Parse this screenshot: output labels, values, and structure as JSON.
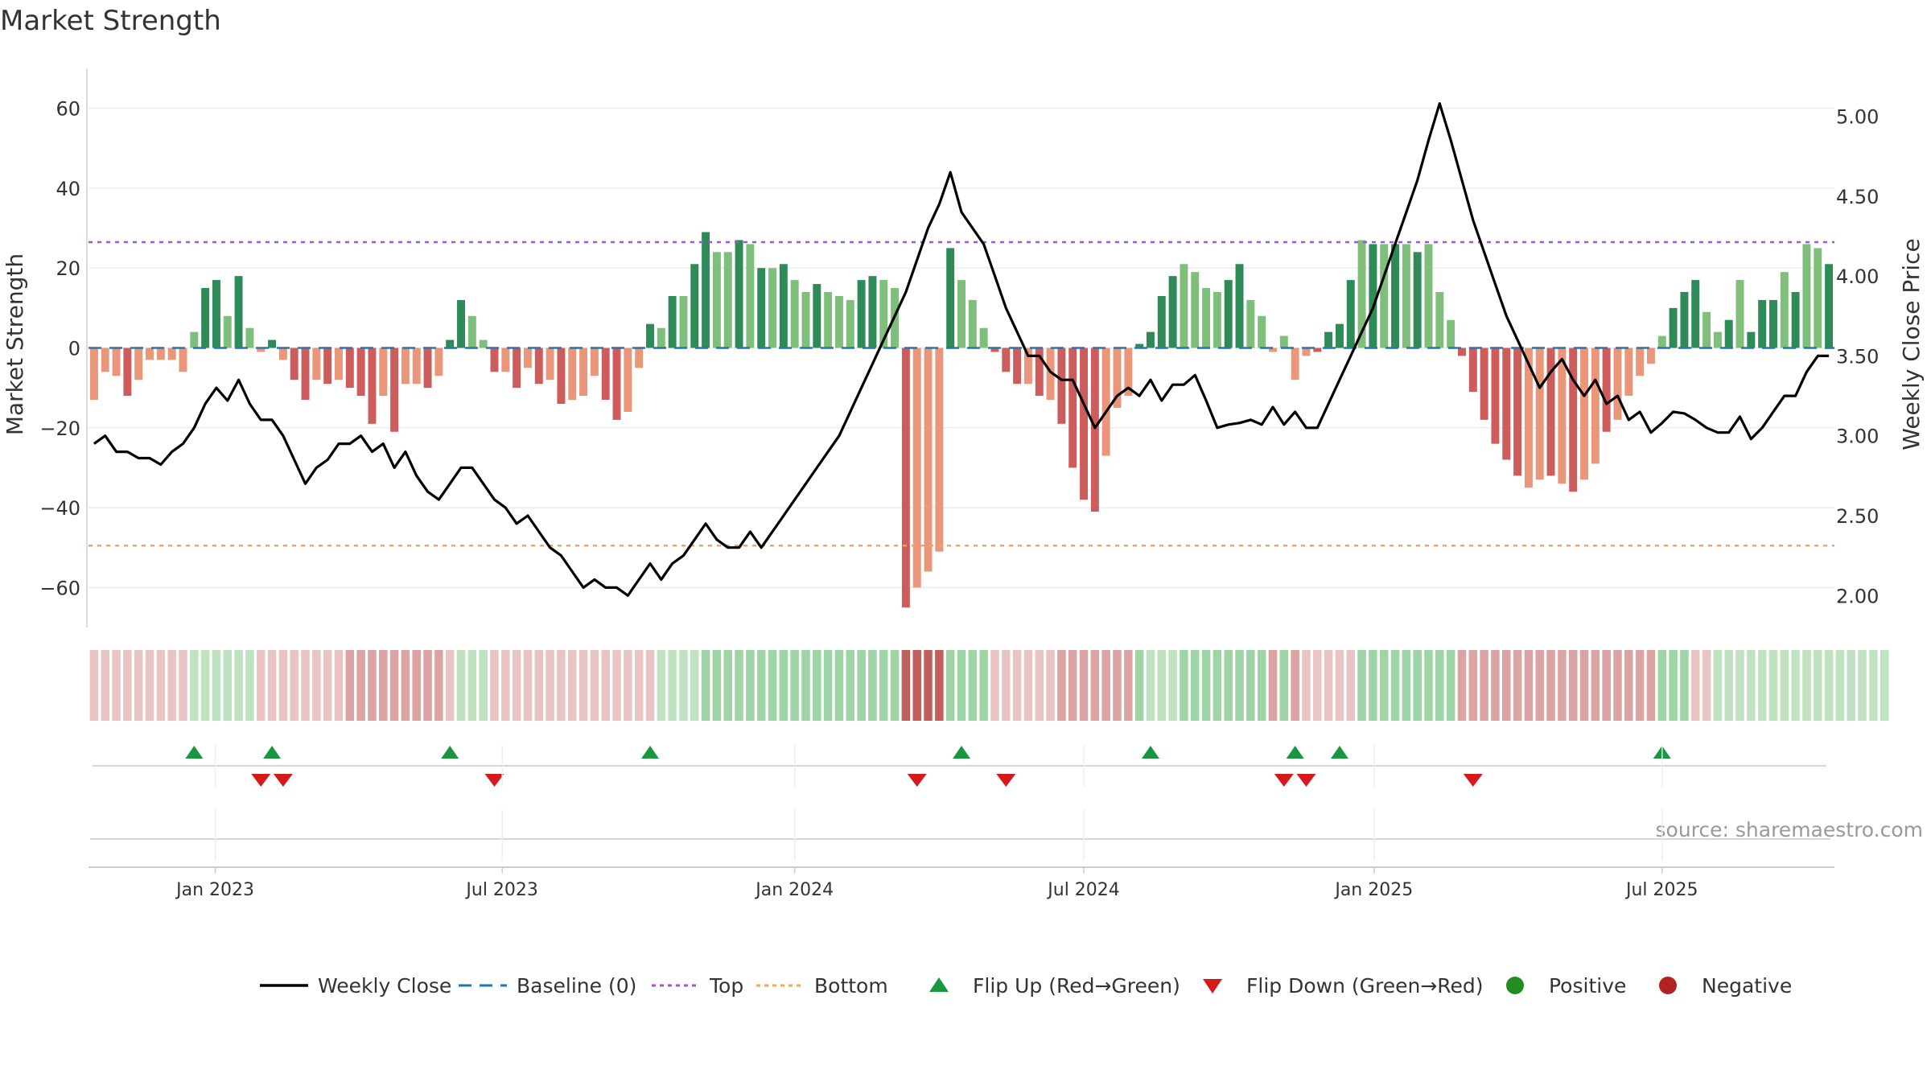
{
  "chart_data": {
    "type": "bar",
    "title": "Market Strength",
    "ylabel": "Market Strength",
    "y2label": "Weekly Close Price",
    "ylim": [
      -70,
      70
    ],
    "y2lim": [
      1.8,
      5.3
    ],
    "yticks": [
      60,
      40,
      20,
      0,
      -20,
      -40,
      -60
    ],
    "ytick_labels": [
      "60",
      "40",
      "20",
      "0",
      "−20",
      "−40",
      "−60"
    ],
    "y2ticks": [
      5.0,
      4.5,
      4.0,
      3.5,
      3.0,
      2.5,
      2.0
    ],
    "y2tick_labels": [
      "5.00",
      "4.50",
      "4.00",
      "3.50",
      "3.00",
      "2.50",
      "2.00"
    ],
    "top_level": 26.5,
    "bottom_level": -49.5,
    "x_start": "2022-10-17",
    "x_step_weeks": 1,
    "xticks": [
      {
        "label": "Jan 2023",
        "week": 10.9
      },
      {
        "label": "Jul 2023",
        "week": 36.7
      },
      {
        "label": "Jan 2024",
        "week": 63.0
      },
      {
        "label": "Jul 2024",
        "week": 89.0
      },
      {
        "label": "Jan 2025",
        "week": 115.1
      },
      {
        "label": "Jul 2025",
        "week": 141.0
      }
    ],
    "strength": [
      -13,
      -6,
      -7,
      -12,
      -8,
      -3,
      -3,
      -3,
      -6,
      4,
      15,
      17,
      8,
      18,
      5,
      -1,
      2,
      -3,
      -8,
      -13,
      -8,
      -9,
      -8,
      -10,
      -12,
      -19,
      -12,
      -21,
      -9,
      -9,
      -10,
      -7,
      2,
      12,
      8,
      2,
      -6,
      -6,
      -10,
      -5,
      -9,
      -8,
      -14,
      -13,
      -12,
      -7,
      -13,
      -18,
      -16,
      -5,
      6,
      5,
      13,
      13,
      21,
      29,
      24,
      24,
      27,
      26,
      20,
      20,
      21,
      17,
      14,
      16,
      14,
      13,
      12,
      17,
      18,
      17,
      15,
      -65,
      -60,
      -56,
      -51,
      25,
      17,
      12,
      5,
      -1,
      -6,
      -9,
      -9,
      -12,
      -13,
      -19,
      -30,
      -38,
      -41,
      -27,
      -15,
      -12,
      1,
      4,
      13,
      18,
      21,
      19,
      15,
      14,
      17,
      21,
      12,
      8,
      -1,
      3,
      -8,
      -2,
      -1,
      4,
      6,
      17,
      27,
      26,
      26,
      26,
      26,
      24,
      26,
      14,
      7,
      -2,
      -11,
      -18,
      -24,
      -28,
      -32,
      -35,
      -33,
      -32,
      -34,
      -36,
      -33,
      -29,
      -21,
      -18,
      -12,
      -7,
      -4,
      3,
      10,
      14,
      17,
      9,
      4,
      7,
      17,
      4,
      12,
      12,
      19,
      14,
      26,
      25,
      21
    ],
    "shades": [
      "light",
      "light",
      "light",
      "dark",
      "light",
      "light",
      "light",
      "light",
      "light",
      "light",
      "dark",
      "dark",
      "light",
      "dark",
      "light",
      "light",
      "dark",
      "light",
      "dark",
      "dark",
      "light",
      "dark",
      "light",
      "dark",
      "dark",
      "dark",
      "light",
      "dark",
      "light",
      "light",
      "dark",
      "light",
      "dark",
      "dark",
      "light",
      "light",
      "dark",
      "light",
      "dark",
      "light",
      "dark",
      "light",
      "dark",
      "light",
      "light",
      "light",
      "dark",
      "dark",
      "light",
      "light",
      "dark",
      "light",
      "dark",
      "light",
      "dark",
      "dark",
      "light",
      "light",
      "dark",
      "light",
      "dark",
      "light",
      "dark",
      "light",
      "light",
      "dark",
      "light",
      "light",
      "light",
      "dark",
      "dark",
      "light",
      "light",
      "dark",
      "light",
      "light",
      "light",
      "dark",
      "light",
      "light",
      "light",
      "dark",
      "dark",
      "dark",
      "light",
      "dark",
      "light",
      "dark",
      "dark",
      "dark",
      "dark",
      "light",
      "light",
      "light",
      "dark",
      "dark",
      "dark",
      "dark",
      "light",
      "light",
      "light",
      "light",
      "dark",
      "dark",
      "light",
      "light",
      "light",
      "light",
      "light",
      "light",
      "dark",
      "dark",
      "dark",
      "dark",
      "light",
      "dark",
      "light",
      "dark",
      "light",
      "dark",
      "light",
      "light",
      "light",
      "dark",
      "dark",
      "dark",
      "dark",
      "dark",
      "dark",
      "light",
      "light",
      "dark",
      "light",
      "dark",
      "light",
      "light",
      "dark",
      "light",
      "light",
      "light",
      "light",
      "light",
      "dark",
      "dark",
      "dark",
      "light",
      "light",
      "dark",
      "light",
      "dark",
      "dark",
      "dark",
      "light",
      "dark",
      "light",
      "light",
      "dark",
      "light",
      "light",
      "dark",
      "light",
      "light"
    ],
    "close": [
      2.95,
      3.0,
      2.9,
      2.9,
      2.86,
      2.86,
      2.82,
      2.9,
      2.95,
      3.05,
      3.2,
      3.3,
      3.22,
      3.35,
      3.2,
      3.1,
      3.1,
      3.0,
      2.85,
      2.7,
      2.8,
      2.85,
      2.95,
      2.95,
      3.0,
      2.9,
      2.95,
      2.8,
      2.9,
      2.75,
      2.65,
      2.6,
      2.7,
      2.8,
      2.8,
      2.7,
      2.6,
      2.55,
      2.45,
      2.5,
      2.4,
      2.3,
      2.25,
      2.15,
      2.05,
      2.1,
      2.05,
      2.05,
      2.0,
      2.1,
      2.2,
      2.1,
      2.2,
      2.25,
      2.35,
      2.45,
      2.35,
      2.3,
      2.3,
      2.4,
      2.3,
      2.4,
      2.5,
      2.6,
      2.7,
      2.8,
      2.9,
      3.0,
      3.15,
      3.3,
      3.45,
      3.6,
      3.75,
      3.9,
      4.1,
      4.3,
      4.45,
      4.65,
      4.4,
      4.3,
      4.2,
      4.0,
      3.8,
      3.65,
      3.5,
      3.5,
      3.4,
      3.35,
      3.35,
      3.2,
      3.05,
      3.15,
      3.25,
      3.3,
      3.25,
      3.35,
      3.22,
      3.32,
      3.32,
      3.38,
      3.22,
      3.05,
      3.07,
      3.08,
      3.1,
      3.07,
      3.18,
      3.07,
      3.15,
      3.05,
      3.05,
      3.2,
      3.35,
      3.5,
      3.65,
      3.8,
      4.0,
      4.2,
      4.4,
      4.6,
      4.85,
      5.08,
      4.85,
      4.6,
      4.35,
      4.15,
      3.95,
      3.75,
      3.6,
      3.45,
      3.3,
      3.4,
      3.48,
      3.35,
      3.25,
      3.35,
      3.2,
      3.25,
      3.1,
      3.15,
      3.02,
      3.08,
      3.15,
      3.14,
      3.1,
      3.05,
      3.02,
      3.02,
      3.12,
      2.98,
      3.05,
      3.15,
      3.25,
      3.25,
      3.4,
      3.5,
      3.5
    ],
    "regime_strip": [
      "faint",
      "faint",
      "faint",
      "faint",
      "faint",
      "faint",
      "faint",
      "faint",
      "faint",
      "light",
      "light",
      "light",
      "light",
      "light",
      "light",
      "faint",
      "faint",
      "faint",
      "faint",
      "faint",
      "faint",
      "faint",
      "faint",
      "medium",
      "medium",
      "medium",
      "medium",
      "medium",
      "medium",
      "medium",
      "medium",
      "medium",
      "faint",
      "light",
      "light",
      "light",
      "faint",
      "faint",
      "faint",
      "faint",
      "faint",
      "faint",
      "faint",
      "faint",
      "faint",
      "faint",
      "faint",
      "faint",
      "faint",
      "faint",
      "faint",
      "light",
      "light",
      "light",
      "light",
      "medium",
      "medium",
      "medium",
      "medium",
      "medium",
      "medium",
      "medium",
      "medium",
      "medium",
      "medium",
      "medium",
      "medium",
      "medium",
      "medium",
      "medium",
      "medium",
      "medium",
      "medium",
      "strong",
      "strong",
      "strong",
      "strong",
      "medium",
      "medium",
      "medium",
      "medium",
      "faint",
      "faint",
      "faint",
      "faint",
      "faint",
      "faint",
      "medium",
      "medium",
      "medium",
      "medium",
      "medium",
      "medium",
      "medium",
      "medium",
      "light",
      "light",
      "light",
      "medium",
      "medium",
      "medium",
      "medium",
      "medium",
      "medium",
      "medium",
      "medium",
      "medium",
      "medium",
      "medium",
      "faint",
      "faint",
      "faint",
      "faint",
      "faint",
      "medium",
      "medium",
      "medium",
      "medium",
      "medium",
      "medium",
      "medium",
      "medium",
      "medium",
      "medium",
      "medium",
      "medium",
      "medium",
      "medium",
      "medium",
      "medium",
      "medium",
      "medium",
      "medium",
      "medium",
      "medium",
      "medium",
      "medium",
      "medium",
      "medium",
      "medium",
      "medium",
      "medium",
      "medium",
      "medium",
      "faint",
      "faint",
      "light",
      "light",
      "light",
      "light",
      "light",
      "light",
      "light",
      "light",
      "light",
      "light",
      "light",
      "light",
      "light",
      "light",
      "light",
      "light"
    ],
    "flip_up_weeks": [
      9,
      16,
      32,
      50,
      78,
      95,
      108,
      112,
      141
    ],
    "flip_down_weeks": [
      15,
      17,
      36,
      74,
      82,
      107,
      109,
      124
    ],
    "colors": {
      "pos_dark": "#2e8b57",
      "pos_light": "#7fbf7b",
      "neg_dark": "#cd5c5c",
      "neg_light": "#e9967a",
      "close": "#000000",
      "baseline": "#1f77b4",
      "top": "#9b59d0",
      "bottom": "#f4a460",
      "flip_up": "#1a9641",
      "flip_down": "#d7191c",
      "positive": "#228b22",
      "negative": "#b22222"
    },
    "legend": [
      {
        "label": "Weekly Close",
        "kind": "line"
      },
      {
        "label": "Baseline (0)",
        "kind": "baseline"
      },
      {
        "label": "Top",
        "kind": "top"
      },
      {
        "label": "Bottom",
        "kind": "bottom"
      },
      {
        "label": "Flip Up (Red→Green)",
        "kind": "up"
      },
      {
        "label": "Flip Down (Green→Red)",
        "kind": "down"
      },
      {
        "label": "Positive",
        "kind": "pos"
      },
      {
        "label": "Negative",
        "kind": "neg"
      }
    ],
    "legend_position": "bottom",
    "source": "source: sharemaestro.com"
  }
}
